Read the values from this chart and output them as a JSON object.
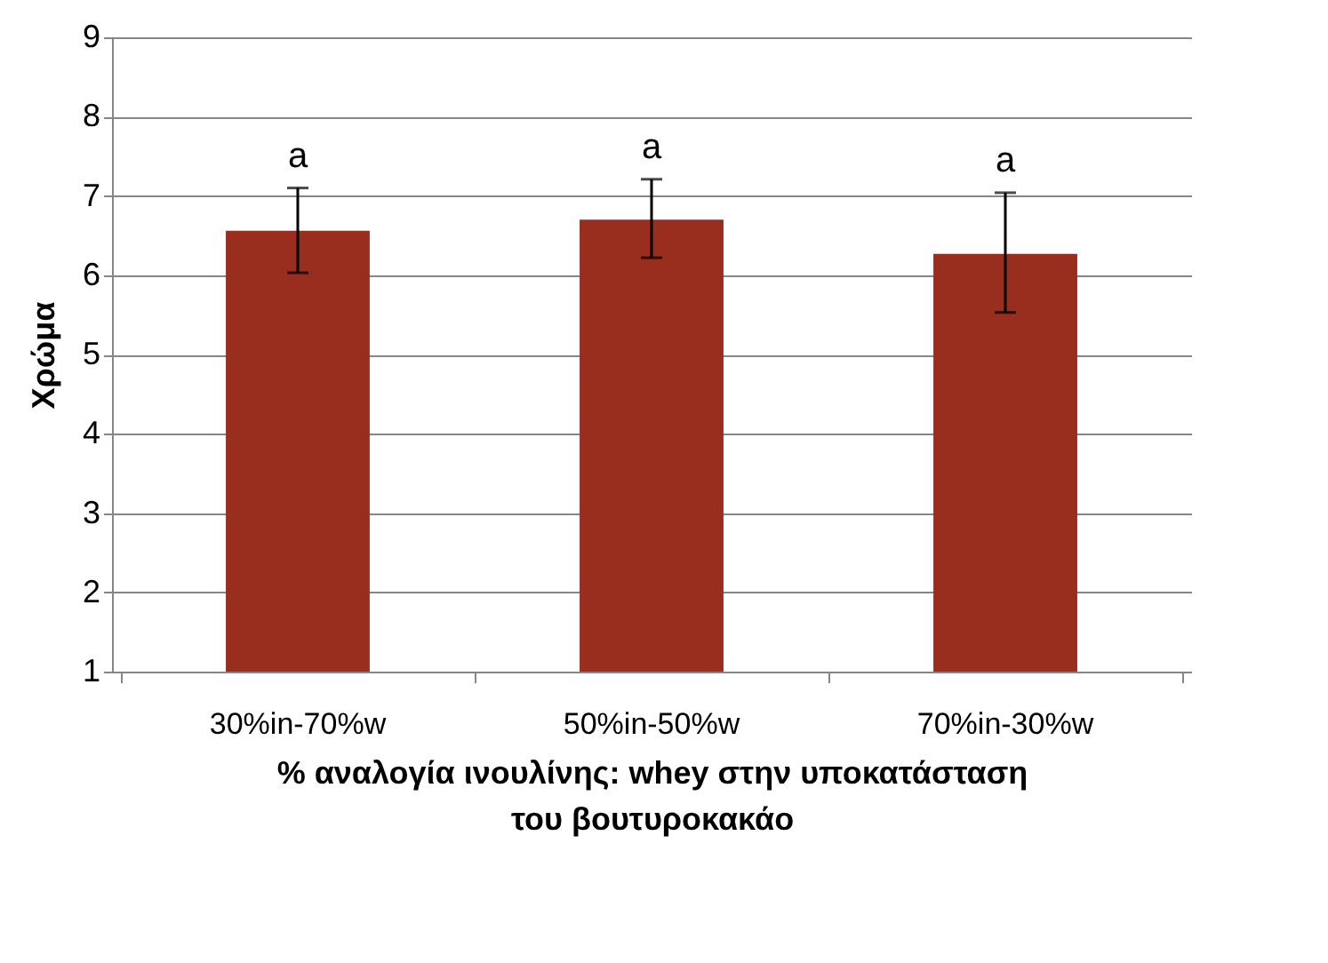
{
  "chart_data": {
    "type": "bar",
    "categories": [
      "30%in-70%w",
      "50%in-50%w",
      "70%in-30%w"
    ],
    "values": [
      6.56,
      6.7,
      6.27
    ],
    "errors": [
      [
        6.03,
        7.1
      ],
      [
        6.22,
        7.21
      ],
      [
        5.53,
        7.04
      ]
    ],
    "color": "#992e1f",
    "xlabel": "% αναλογία ινουλίνης: whey στην υποκατάσταση\nτου βουτυροκακάο",
    "ylabel": "Χρώμα",
    "ylim": [
      1,
      9
    ],
    "yticks": [
      1,
      2,
      3,
      4,
      5,
      6,
      7,
      8,
      9
    ],
    "grid": "y",
    "annotations": [
      "a",
      "a",
      "a"
    ]
  }
}
